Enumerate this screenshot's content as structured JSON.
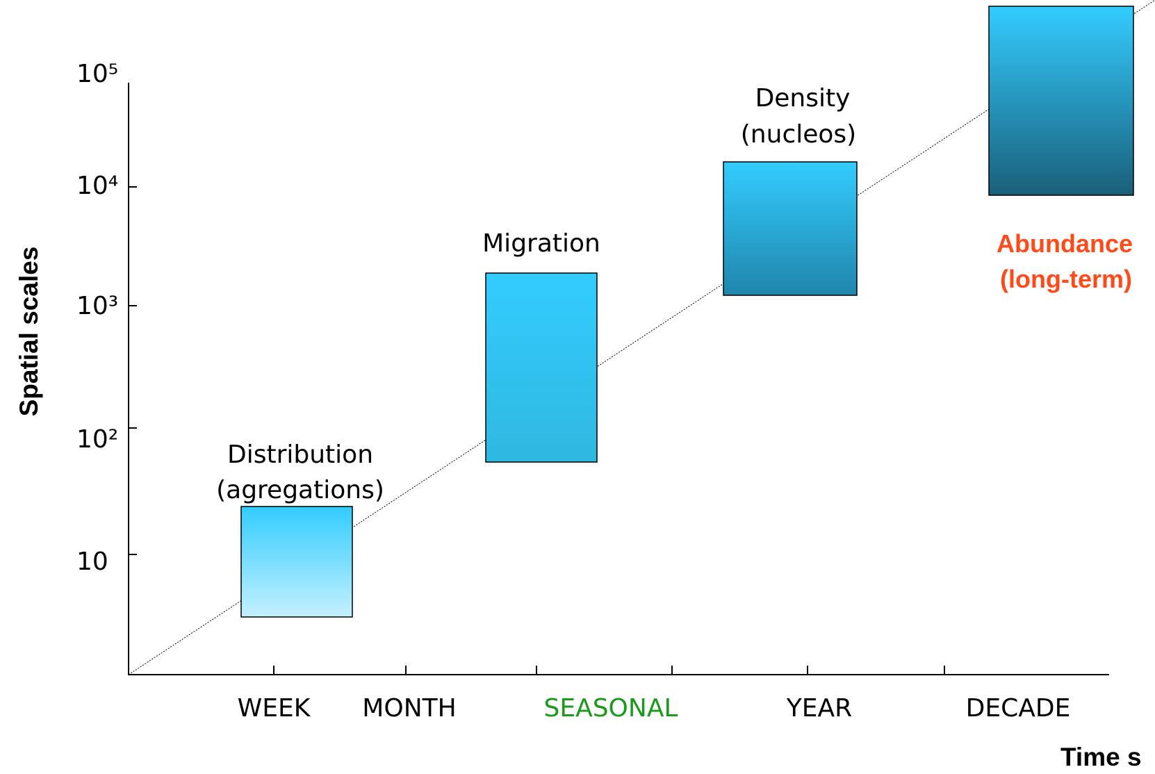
{
  "axes": {
    "y_title": "Spatial scales",
    "x_title": "Time s",
    "y_labels": [
      "10⁵",
      "10⁴",
      "10³",
      "10²",
      "10"
    ],
    "x_labels": [
      "WEEK",
      "MONTH",
      "SEASONAL",
      "YEAR",
      "DECADE"
    ]
  },
  "boxes": [
    {
      "label": [
        "Distribution",
        "(agregations)"
      ]
    },
    {
      "label": [
        "Migration"
      ]
    },
    {
      "label": [
        "Density",
        "(nucleos)"
      ]
    },
    {
      "label": [
        "Abundance",
        "(long-term)"
      ]
    }
  ]
}
